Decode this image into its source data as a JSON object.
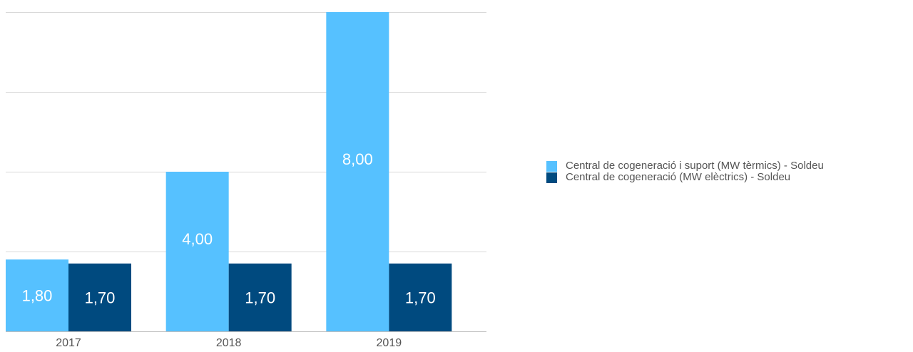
{
  "chart_data": {
    "type": "bar",
    "categories": [
      "2017",
      "2018",
      "2019"
    ],
    "series": [
      {
        "name": "Central de cogeneració i suport (MW tèrmics) - Soldeu",
        "values": [
          1.8,
          4.0,
          8.0
        ],
        "color": "#56c1ff",
        "labels": [
          "1,80",
          "4,00",
          "8,00"
        ]
      },
      {
        "name": "Central de cogeneració (MW elèctrics) - Soldeu",
        "values": [
          1.7,
          1.7,
          1.7
        ],
        "color": "#004a7f",
        "labels": [
          "1,70",
          "1,70",
          "1,70"
        ]
      }
    ],
    "ylim": [
      0,
      8
    ],
    "grid": true,
    "legend_position": "right"
  }
}
